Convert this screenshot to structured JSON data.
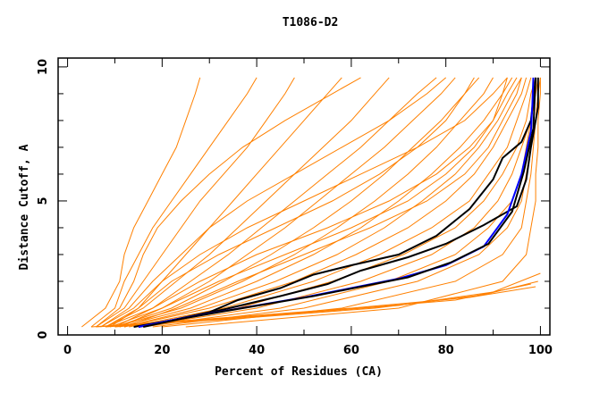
{
  "chart_data": {
    "type": "line",
    "title": "T1086-D2",
    "xlabel": "Percent of Residues (CA)",
    "ylabel": "Distance Cutoff, A",
    "xlim": [
      -2,
      102
    ],
    "ylim": [
      0,
      10.33
    ],
    "x_ticks": [
      0,
      20,
      40,
      60,
      80,
      100
    ],
    "y_ticks": [
      0,
      5,
      10
    ],
    "grid": false,
    "legend": "none",
    "colors": {
      "models": "#ff8000",
      "highlight_blue": "#0000ff",
      "highlight_black": "#000000"
    },
    "orange_y_levels": [
      0.3,
      1,
      2,
      3,
      4,
      5,
      6,
      7,
      8,
      9,
      9.6
    ],
    "orange_curves_x": [
      [
        3,
        8,
        11,
        12,
        14,
        17,
        20,
        23,
        25,
        27,
        28
      ],
      [
        5,
        10,
        12,
        15,
        18,
        22,
        26,
        30,
        34,
        38,
        40
      ],
      [
        6,
        12,
        16,
        20,
        24,
        28,
        33,
        38,
        42,
        46,
        48
      ],
      [
        7,
        14,
        20,
        25,
        30,
        35,
        40,
        45,
        50,
        55,
        58
      ],
      [
        8,
        16,
        23,
        30,
        36,
        42,
        48,
        54,
        60,
        65,
        68
      ],
      [
        8,
        18,
        26,
        34,
        41,
        48,
        55,
        62,
        68,
        74,
        78
      ],
      [
        9,
        20,
        30,
        38,
        46,
        53,
        60,
        67,
        73,
        79,
        82
      ],
      [
        10,
        22,
        33,
        43,
        52,
        60,
        67,
        73,
        79,
        84,
        87
      ],
      [
        10,
        24,
        37,
        48,
        57,
        65,
        72,
        78,
        83,
        88,
        90
      ],
      [
        11,
        26,
        40,
        52,
        62,
        70,
        77,
        83,
        88,
        92,
        94
      ],
      [
        12,
        28,
        44,
        57,
        67,
        75,
        82,
        87,
        91,
        94,
        96
      ],
      [
        12,
        30,
        48,
        61,
        72,
        80,
        86,
        90,
        93,
        96,
        97
      ],
      [
        13,
        33,
        52,
        66,
        77,
        85,
        89,
        93,
        95,
        97,
        98
      ],
      [
        14,
        36,
        56,
        71,
        82,
        88,
        92,
        95,
        97,
        98,
        99
      ],
      [
        15,
        40,
        62,
        77,
        86,
        91,
        94,
        96,
        98,
        99,
        99
      ],
      [
        16,
        45,
        68,
        82,
        89,
        94,
        96,
        97,
        98,
        99,
        99.5
      ],
      [
        18,
        50,
        74,
        87,
        93,
        96,
        97,
        98,
        99,
        99.5,
        99.5
      ],
      [
        20,
        58,
        82,
        92,
        96,
        97,
        98,
        98.5,
        99,
        99.5,
        100
      ],
      [
        25,
        70,
        92,
        97,
        98,
        99,
        99,
        99.5,
        99.5,
        100,
        100
      ],
      [
        6,
        11,
        14,
        16,
        19,
        24,
        30,
        37,
        46,
        56,
        62
      ],
      [
        9,
        15,
        20,
        28,
        38,
        50,
        62,
        74,
        84,
        90,
        93
      ],
      [
        10,
        18,
        28,
        40,
        55,
        68,
        78,
        85,
        90,
        93,
        95
      ],
      [
        7,
        13,
        18,
        24,
        30,
        38,
        48,
        58,
        68,
        76,
        80
      ],
      [
        11,
        20,
        32,
        46,
        60,
        72,
        80,
        86,
        90,
        92,
        93
      ],
      [
        12,
        23,
        36,
        50,
        64,
        76,
        84,
        89,
        92,
        95,
        96
      ],
      [
        8,
        15,
        22,
        32,
        44,
        56,
        66,
        74,
        80,
        84,
        86
      ]
    ],
    "orange_low_curves": [
      [
        [
          5,
          0.3
        ],
        [
          30,
          0.6
        ],
        [
          60,
          1.0
        ],
        [
          85,
          1.4
        ],
        [
          99,
          1.8
        ]
      ],
      [
        [
          8,
          0.3
        ],
        [
          35,
          0.6
        ],
        [
          65,
          1.0
        ],
        [
          88,
          1.5
        ],
        [
          99.5,
          2.0
        ]
      ],
      [
        [
          10,
          0.3
        ],
        [
          40,
          0.7
        ],
        [
          70,
          1.1
        ],
        [
          90,
          1.6
        ],
        [
          100,
          2.3
        ]
      ],
      [
        [
          6,
          0.3
        ],
        [
          25,
          0.5
        ],
        [
          55,
          0.9
        ],
        [
          82,
          1.3
        ],
        [
          98,
          1.9
        ]
      ]
    ],
    "highlight_curves": [
      {
        "color": "#000000",
        "points": [
          [
            14,
            0.3
          ],
          [
            22,
            0.55
          ],
          [
            30,
            0.85
          ],
          [
            36,
            1.3
          ],
          [
            45,
            1.75
          ],
          [
            52,
            2.25
          ],
          [
            60,
            2.6
          ],
          [
            70,
            3.0
          ],
          [
            78,
            3.7
          ],
          [
            85,
            4.7
          ],
          [
            90,
            5.8
          ],
          [
            92,
            6.6
          ],
          [
            96,
            7.2
          ],
          [
            98,
            8.0
          ],
          [
            99,
            9.6
          ]
        ]
      },
      {
        "color": "#000000",
        "points": [
          [
            15,
            0.3
          ],
          [
            25,
            0.65
          ],
          [
            33,
            0.95
          ],
          [
            45,
            1.45
          ],
          [
            55,
            1.9
          ],
          [
            62,
            2.4
          ],
          [
            72,
            2.9
          ],
          [
            80,
            3.4
          ],
          [
            88,
            4.1
          ],
          [
            95,
            4.8
          ],
          [
            97,
            5.8
          ],
          [
            98,
            7.0
          ],
          [
            99.5,
            8.5
          ],
          [
            99.5,
            9.6
          ]
        ]
      },
      {
        "color": "#0000ff",
        "points": [
          [
            15,
            0.3
          ],
          [
            22,
            0.55
          ],
          [
            30,
            0.8
          ],
          [
            40,
            1.1
          ],
          [
            50,
            1.4
          ],
          [
            60,
            1.75
          ],
          [
            70,
            2.1
          ],
          [
            80,
            2.6
          ],
          [
            88,
            3.3
          ],
          [
            93,
            4.5
          ],
          [
            96,
            6.0
          ],
          [
            98,
            7.6
          ],
          [
            98.3,
            8.6
          ],
          [
            98.5,
            9.6
          ]
        ]
      },
      {
        "color": "#000000",
        "points": [
          [
            16,
            0.3
          ],
          [
            24,
            0.6
          ],
          [
            32,
            0.85
          ],
          [
            42,
            1.15
          ],
          [
            52,
            1.45
          ],
          [
            62,
            1.8
          ],
          [
            72,
            2.15
          ],
          [
            81,
            2.7
          ],
          [
            89,
            3.4
          ],
          [
            94,
            4.6
          ],
          [
            96.5,
            6.1
          ],
          [
            98.5,
            7.7
          ],
          [
            99,
            9.6
          ]
        ]
      }
    ]
  }
}
